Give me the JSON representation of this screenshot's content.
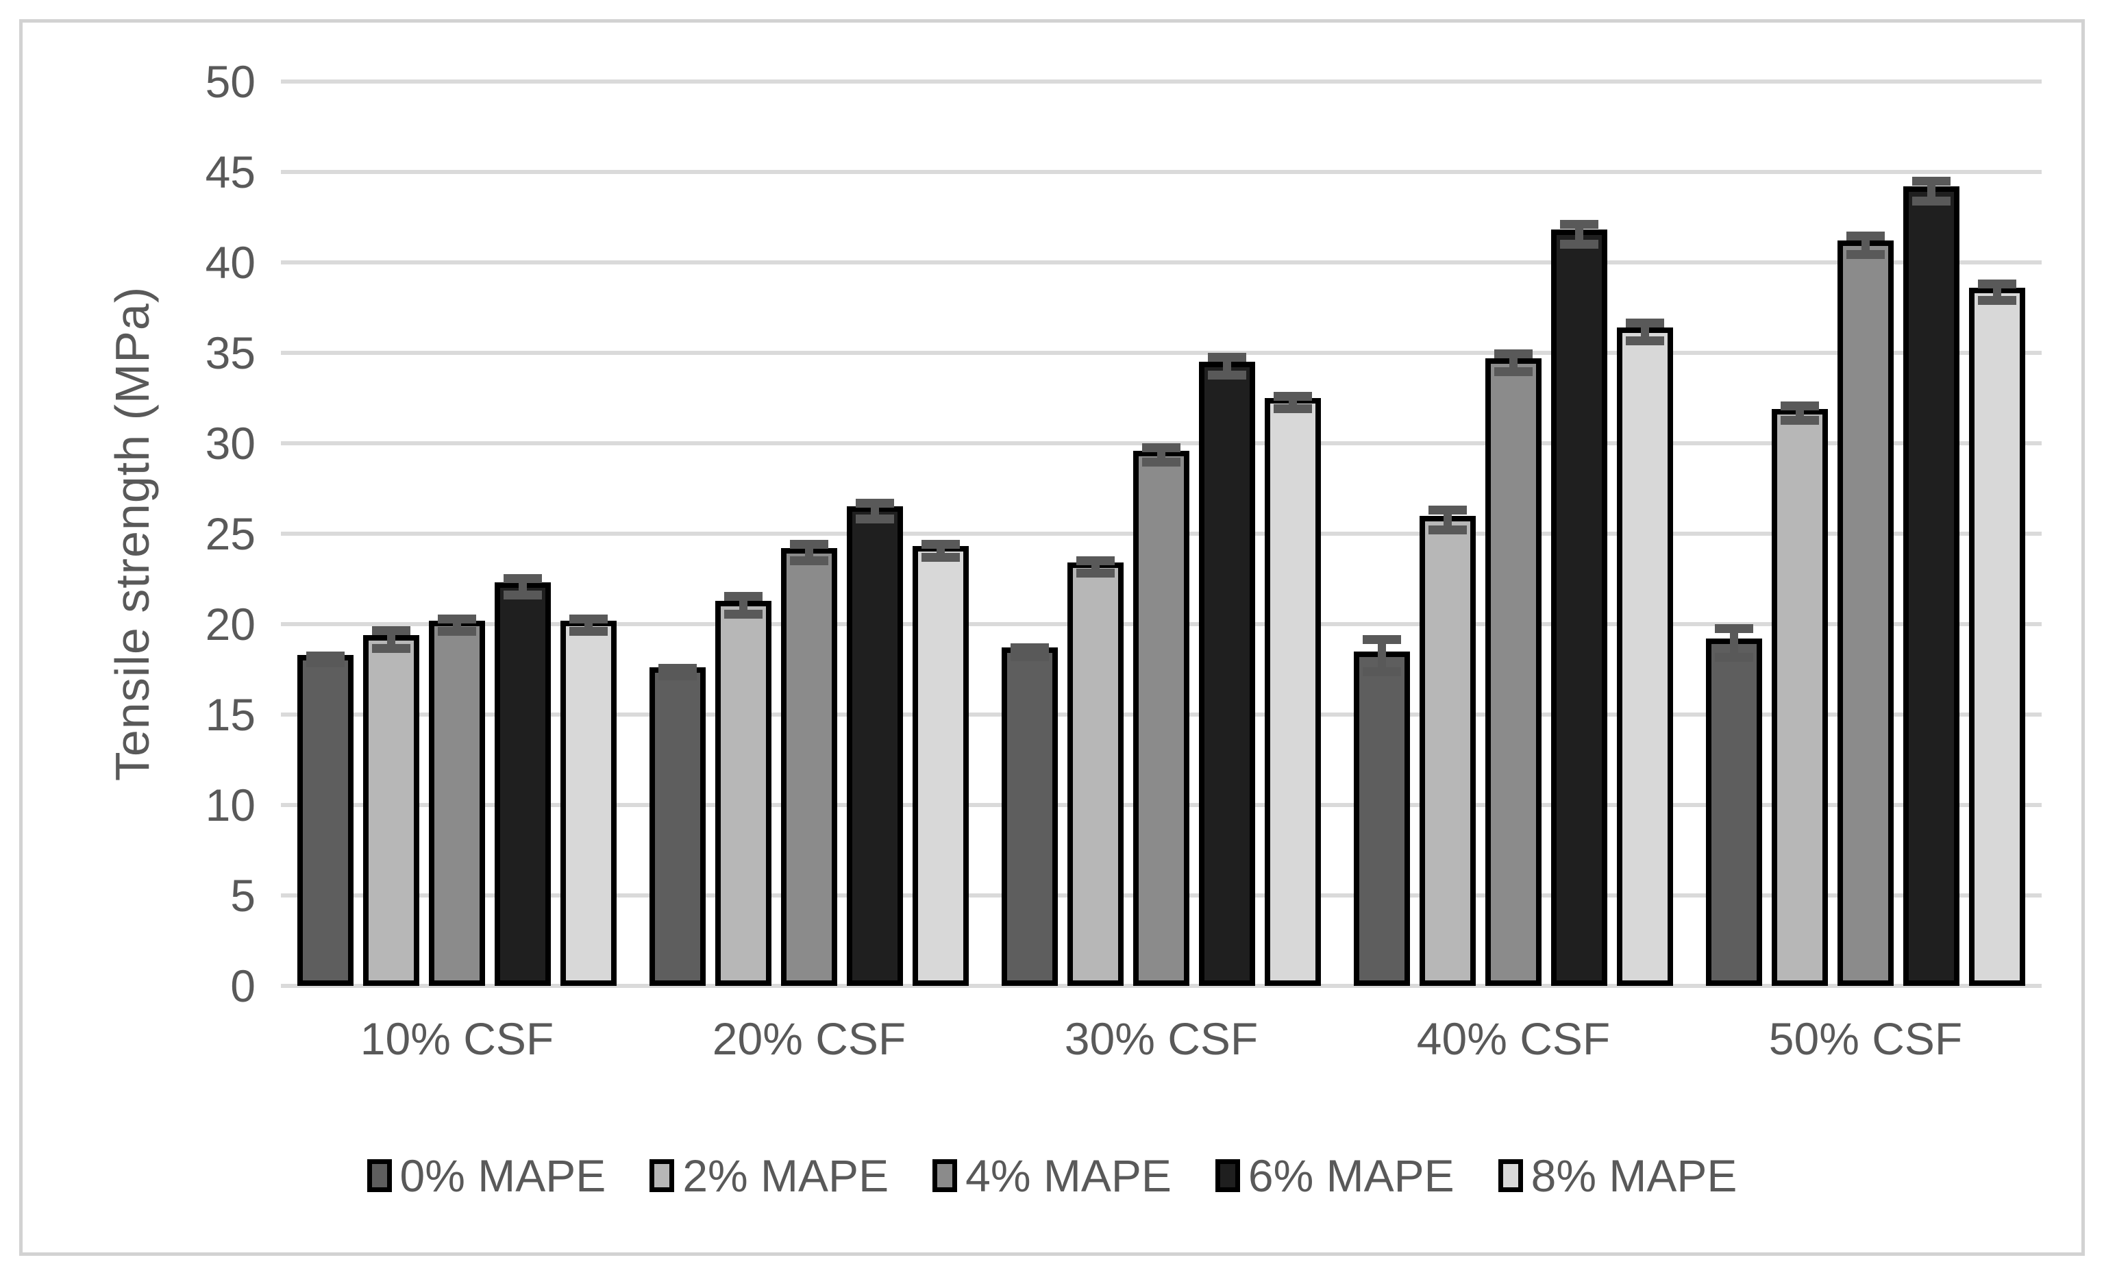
{
  "figure": {
    "background": "#ffffff",
    "frame_color": "#d2d2d2",
    "text_color": "#595959",
    "gridline_color": "#dadada",
    "bar_border_color": "#000000",
    "error_bar_color": "#595959"
  },
  "chart_data": {
    "type": "bar",
    "title": "",
    "xlabel": "",
    "ylabel": "Tensile strength (MPa)",
    "ylim": [
      0,
      50
    ],
    "yticks": [
      0,
      5,
      10,
      15,
      20,
      25,
      30,
      35,
      40,
      45,
      50
    ],
    "grid": "horizontal",
    "legend_position": "bottom",
    "error_bars": true,
    "categories": [
      "10% CSF",
      "20% CSF",
      "30% CSF",
      "40% CSF",
      "50% CSF"
    ],
    "series": [
      {
        "name": "0% MAPE",
        "color": "#5e5e5e",
        "values": [
          18.3,
          17.6,
          18.7,
          18.5,
          19.2
        ],
        "errors": [
          0.2,
          0.2,
          0.25,
          0.9,
          0.8
        ]
      },
      {
        "name": "2% MAPE",
        "color": "#b7b7b7",
        "values": [
          19.4,
          21.3,
          23.4,
          26.0,
          31.9
        ],
        "errors": [
          0.5,
          0.5,
          0.35,
          0.55,
          0.4
        ]
      },
      {
        "name": "4% MAPE",
        "color": "#8b8b8b",
        "values": [
          20.2,
          24.2,
          29.6,
          34.7,
          41.2
        ],
        "errors": [
          0.35,
          0.45,
          0.4,
          0.5,
          0.5
        ]
      },
      {
        "name": "6% MAPE",
        "color": "#1f1f1f",
        "values": [
          22.3,
          26.5,
          34.5,
          41.8,
          44.2
        ],
        "errors": [
          0.45,
          0.45,
          0.5,
          0.55,
          0.55
        ]
      },
      {
        "name": "8% MAPE",
        "color": "#d8d8d8",
        "values": [
          20.2,
          24.3,
          32.5,
          36.4,
          38.6
        ],
        "errors": [
          0.35,
          0.35,
          0.35,
          0.5,
          0.45
        ]
      }
    ]
  }
}
